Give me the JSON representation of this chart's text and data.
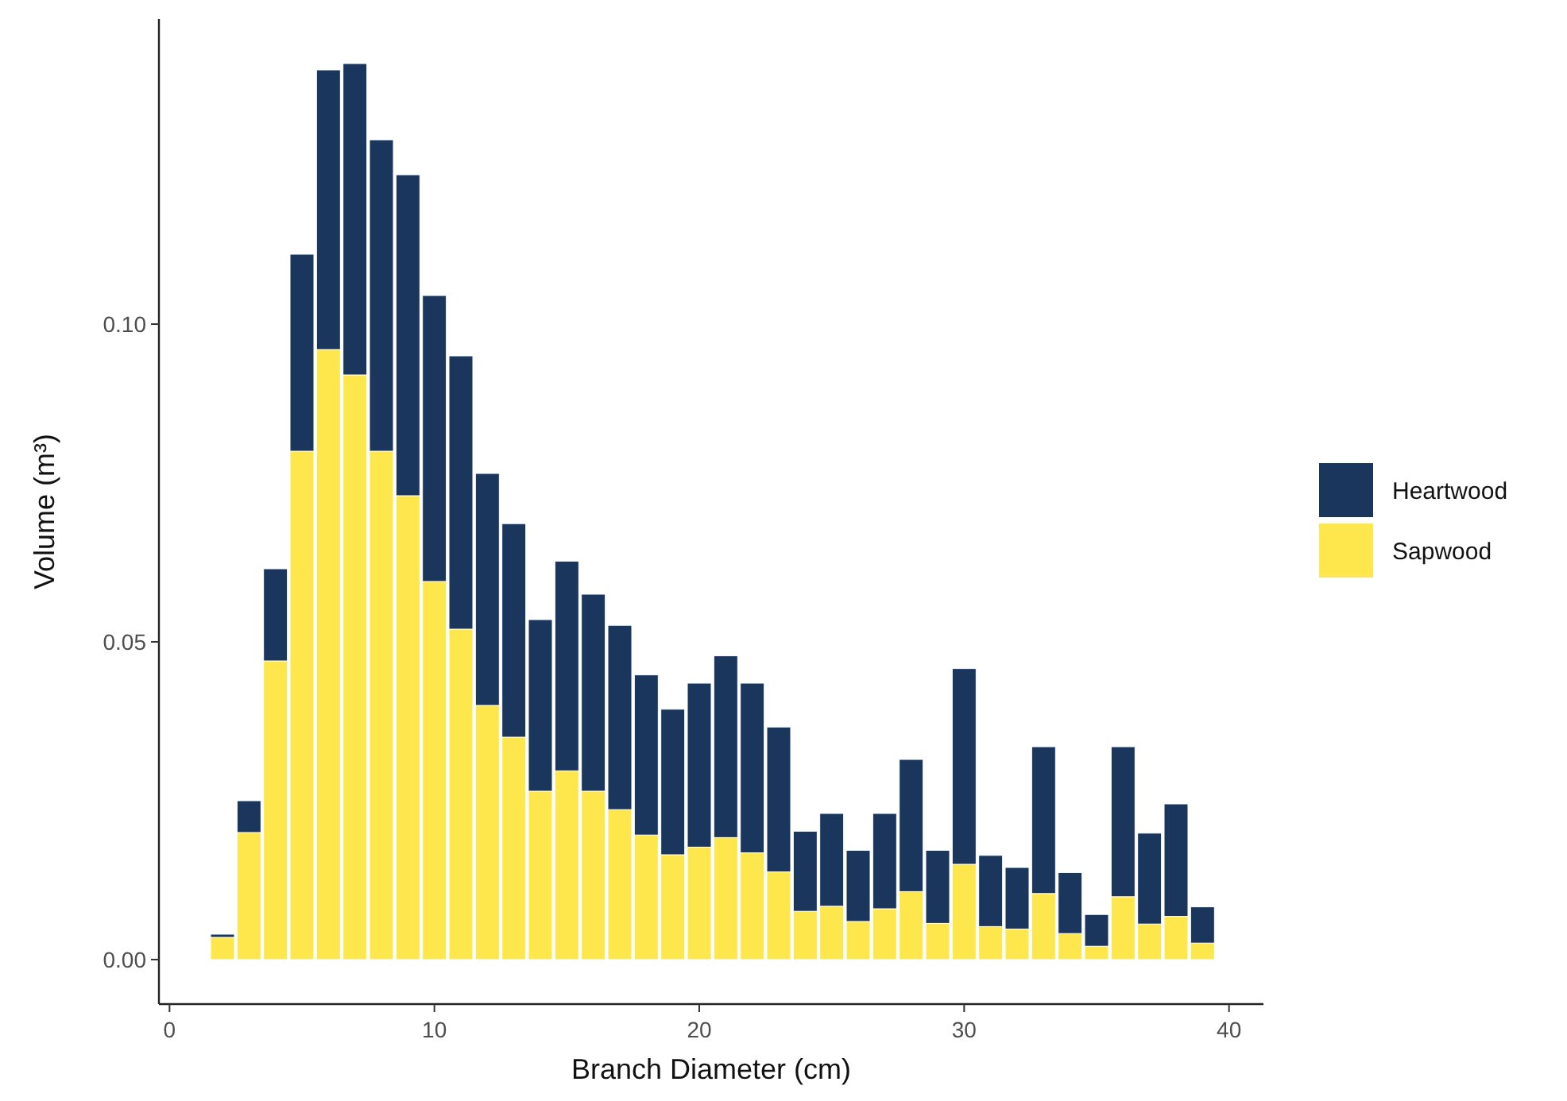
{
  "chart_data": {
    "type": "bar",
    "stacked": true,
    "xlabel": "Branch Diameter (cm)",
    "ylabel": "Volume (m³)",
    "x": [
      2,
      3,
      4,
      5,
      6,
      7,
      8,
      9,
      10,
      11,
      12,
      13,
      14,
      15,
      16,
      17,
      18,
      19,
      20,
      21,
      22,
      23,
      24,
      25,
      26,
      27,
      28,
      29,
      30,
      31,
      32,
      33,
      34,
      35,
      36,
      37,
      38,
      39
    ],
    "series": [
      {
        "name": "Sapwood",
        "color": "#fde74c",
        "values": [
          0.0035,
          0.02,
          0.047,
          0.08,
          0.096,
          0.092,
          0.08,
          0.073,
          0.0595,
          0.052,
          0.04,
          0.035,
          0.0265,
          0.0297,
          0.0265,
          0.0236,
          0.0196,
          0.0165,
          0.0177,
          0.0192,
          0.0168,
          0.0138,
          0.0076,
          0.0084,
          0.006,
          0.008,
          0.0107,
          0.0057,
          0.015,
          0.0052,
          0.0048,
          0.0104,
          0.0041,
          0.0021,
          0.0099,
          0.0056,
          0.0068,
          0.0026
        ]
      },
      {
        "name": "Heartwood",
        "color": "#1b365d",
        "values": [
          0.0005,
          0.005,
          0.0145,
          0.031,
          0.044,
          0.049,
          0.049,
          0.0505,
          0.045,
          0.043,
          0.0365,
          0.0336,
          0.027,
          0.033,
          0.031,
          0.029,
          0.0252,
          0.0229,
          0.0258,
          0.0286,
          0.0267,
          0.0228,
          0.0126,
          0.0146,
          0.0112,
          0.015,
          0.0208,
          0.0115,
          0.0308,
          0.0112,
          0.0097,
          0.0231,
          0.0096,
          0.005,
          0.0236,
          0.0143,
          0.0177,
          0.0057
        ]
      }
    ],
    "xlim": [
      -0.4,
      41.3
    ],
    "xticks": [
      0,
      10,
      20,
      30,
      40
    ],
    "ylim": [
      -0.007,
      0.148
    ],
    "yticks": [
      {
        "value": 0,
        "label": "0.00"
      },
      {
        "value": 0.05,
        "label": "0.05"
      },
      {
        "value": 0.1,
        "label": "0.10"
      }
    ],
    "grid": false,
    "legend": "right"
  }
}
